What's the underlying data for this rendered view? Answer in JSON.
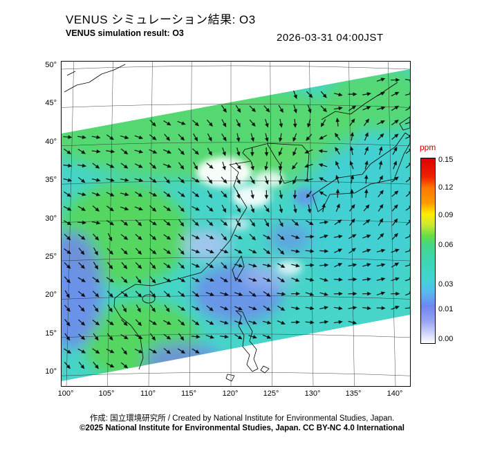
{
  "header": {
    "title_ja": "VENUS シミュレーション結果: O3",
    "title_en": "VENUS simulation result: O3",
    "timestamp": "2026-03-31 04:00JST"
  },
  "map": {
    "variable": "O3",
    "unit": "ppm",
    "lat_ticks": [
      "50°",
      "45°",
      "40°",
      "35°",
      "30°",
      "25°",
      "20°",
      "15°",
      "10°"
    ],
    "lon_ticks": [
      "100°",
      "105°",
      "110°",
      "115°",
      "120°",
      "125°",
      "130°",
      "135°",
      "140°"
    ]
  },
  "colorbar": {
    "unit": "ppm",
    "ticks": [
      "0.15",
      "0.12",
      "0.09",
      "0.06",
      "0.03",
      "0.01",
      "0.00"
    ]
  },
  "footer": {
    "credit": "作成: 国立環境研究所 / Created by National Institute for Environmental Studies, Japan.",
    "copyright": "©2025 National Institute for Environmental Studies, Japan. CC BY-NC 4.0 International"
  },
  "chart_data": {
    "type": "heatmap",
    "title": "VENUS simulation result: O3",
    "timestamp": "2026-03-31 04:00JST",
    "unit": "ppm",
    "value_range": [
      0.0,
      0.15
    ],
    "colorbar_ticks": [
      0.15,
      0.12,
      0.09,
      0.06,
      0.03,
      0.01,
      0.0
    ],
    "lat_range_deg": [
      10,
      50
    ],
    "lon_range_deg": [
      100,
      140
    ],
    "overlay": "wind vector arrows",
    "legend_position": "right",
    "dominant_values_ppm": "mostly 0.03-0.06 (cyan-green) with patches near 0.00-0.01 (white/blue)"
  }
}
